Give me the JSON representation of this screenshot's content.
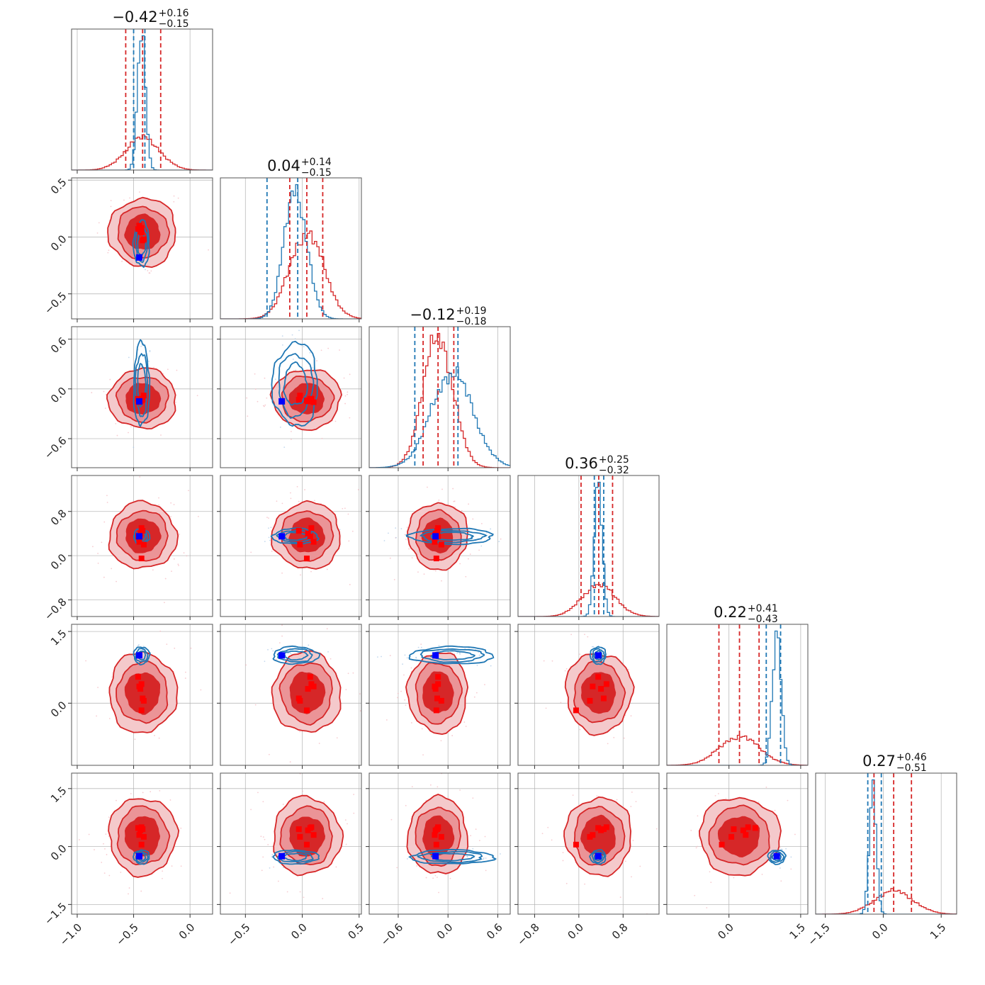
{
  "chart_data": {
    "type": "corner",
    "title": "",
    "grid": true,
    "colors": {
      "red": "#d62728",
      "red_fill_outer": "#f4c9cb",
      "red_fill_mid": "#eb9497",
      "red_fill_inner": "#d62728",
      "blue": "#1f77b4",
      "truth_blue": "#0000ff",
      "truth_red": "#ff0000"
    },
    "parameters": [
      {
        "range": [
          -1.05,
          0.2
        ],
        "ticks": [
          -1.0,
          -0.5,
          0.0
        ],
        "tick_labels": [
          "−1.0",
          "−0.5",
          "0.0"
        ],
        "title_value": "−0.42",
        "title_plus": "+0.16",
        "title_minus": "−0.15",
        "red": {
          "median": -0.42,
          "q16": -0.57,
          "q84": -0.26,
          "sigma": 0.15
        },
        "blue": {
          "median": -0.43,
          "q16": -0.5,
          "q84": -0.4,
          "sigma": 0.035
        },
        "truth_blue": -0.45,
        "red_markers": [
          -0.43,
          -0.44,
          -0.41,
          -0.43,
          -0.46,
          -0.45,
          -0.42
        ]
      },
      {
        "range": [
          -0.72,
          0.52
        ],
        "ticks": [
          -0.5,
          0.0,
          0.5
        ],
        "tick_labels": [
          "−0.5",
          "0.0",
          "0.5"
        ],
        "title_value": "0.04",
        "title_plus": "+0.14",
        "title_minus": "−0.15",
        "red": {
          "median": 0.04,
          "q16": -0.11,
          "q84": 0.18,
          "sigma": 0.15
        },
        "blue": {
          "median": -0.06,
          "q16": -0.31,
          "q84": -0.04,
          "sigma": 0.1
        },
        "truth_blue": -0.18,
        "red_markers": [
          0.08,
          0.05,
          -0.02,
          0.04,
          0.07,
          0.1,
          -0.03
        ]
      },
      {
        "range": [
          -0.95,
          0.75
        ],
        "ticks": [
          -0.6,
          0.0,
          0.6
        ],
        "tick_labels": [
          "−0.6",
          "0.0",
          "0.6"
        ],
        "title_value": "−0.12",
        "title_plus": "+0.19",
        "title_minus": "−0.18",
        "red": {
          "median": -0.12,
          "q16": -0.3,
          "q84": 0.07,
          "sigma": 0.18
        },
        "blue": {
          "median": 0.05,
          "q16": -0.4,
          "q84": 0.12,
          "sigma": 0.25
        },
        "truth_blue": -0.15,
        "red_markers": [
          -0.12,
          -0.15,
          -0.08,
          -0.14,
          -0.12,
          -0.16,
          -0.13
        ]
      },
      {
        "range": [
          -1.1,
          1.45
        ],
        "ticks": [
          -0.8,
          0.0,
          0.8
        ],
        "tick_labels": [
          "−0.8",
          "0.0",
          "0.8"
        ],
        "title_value": "0.36",
        "title_plus": "+0.25",
        "title_minus": "−0.32",
        "red": {
          "median": 0.36,
          "q16": 0.04,
          "q84": 0.61,
          "sigma": 0.3
        },
        "blue": {
          "median": 0.35,
          "q16": 0.28,
          "q84": 0.45,
          "sigma": 0.07
        },
        "truth_blue": 0.35,
        "red_markers": [
          0.5,
          0.4,
          0.2,
          -0.05,
          0.35,
          0.25,
          0.45
        ]
      },
      {
        "range": [
          -1.3,
          1.65
        ],
        "ticks": [
          0.0,
          1.5
        ],
        "tick_labels": [
          "0.0",
          "1.5"
        ],
        "title_value": "0.22",
        "title_plus": "+0.41",
        "title_minus": "−0.43",
        "red": {
          "median": 0.22,
          "q16": -0.21,
          "q84": 0.63,
          "sigma": 0.42
        },
        "blue": {
          "median": 1.0,
          "q16": 0.78,
          "q84": 1.08,
          "sigma": 0.09
        },
        "truth_blue": 1.0,
        "red_markers": [
          0.4,
          0.3,
          0.05,
          -0.15,
          0.55,
          0.35,
          0.1
        ]
      },
      {
        "range": [
          -1.75,
          1.9
        ],
        "ticks": [
          -1.5,
          0.0,
          1.5
        ],
        "tick_labels": [
          "−1.5",
          "0.0",
          "1.5"
        ],
        "title_value": "0.27",
        "title_plus": "+0.46",
        "title_minus": "−0.51",
        "red": {
          "median": 0.27,
          "q16": -0.24,
          "q84": 0.73,
          "sigma": 0.5
        },
        "blue": {
          "median": -0.27,
          "q16": -0.4,
          "q84": -0.05,
          "sigma": 0.09
        },
        "truth_blue": -0.25,
        "red_markers": [
          0.5,
          0.42,
          0.25,
          0.05,
          0.48,
          0.3,
          0.45
        ]
      }
    ]
  }
}
